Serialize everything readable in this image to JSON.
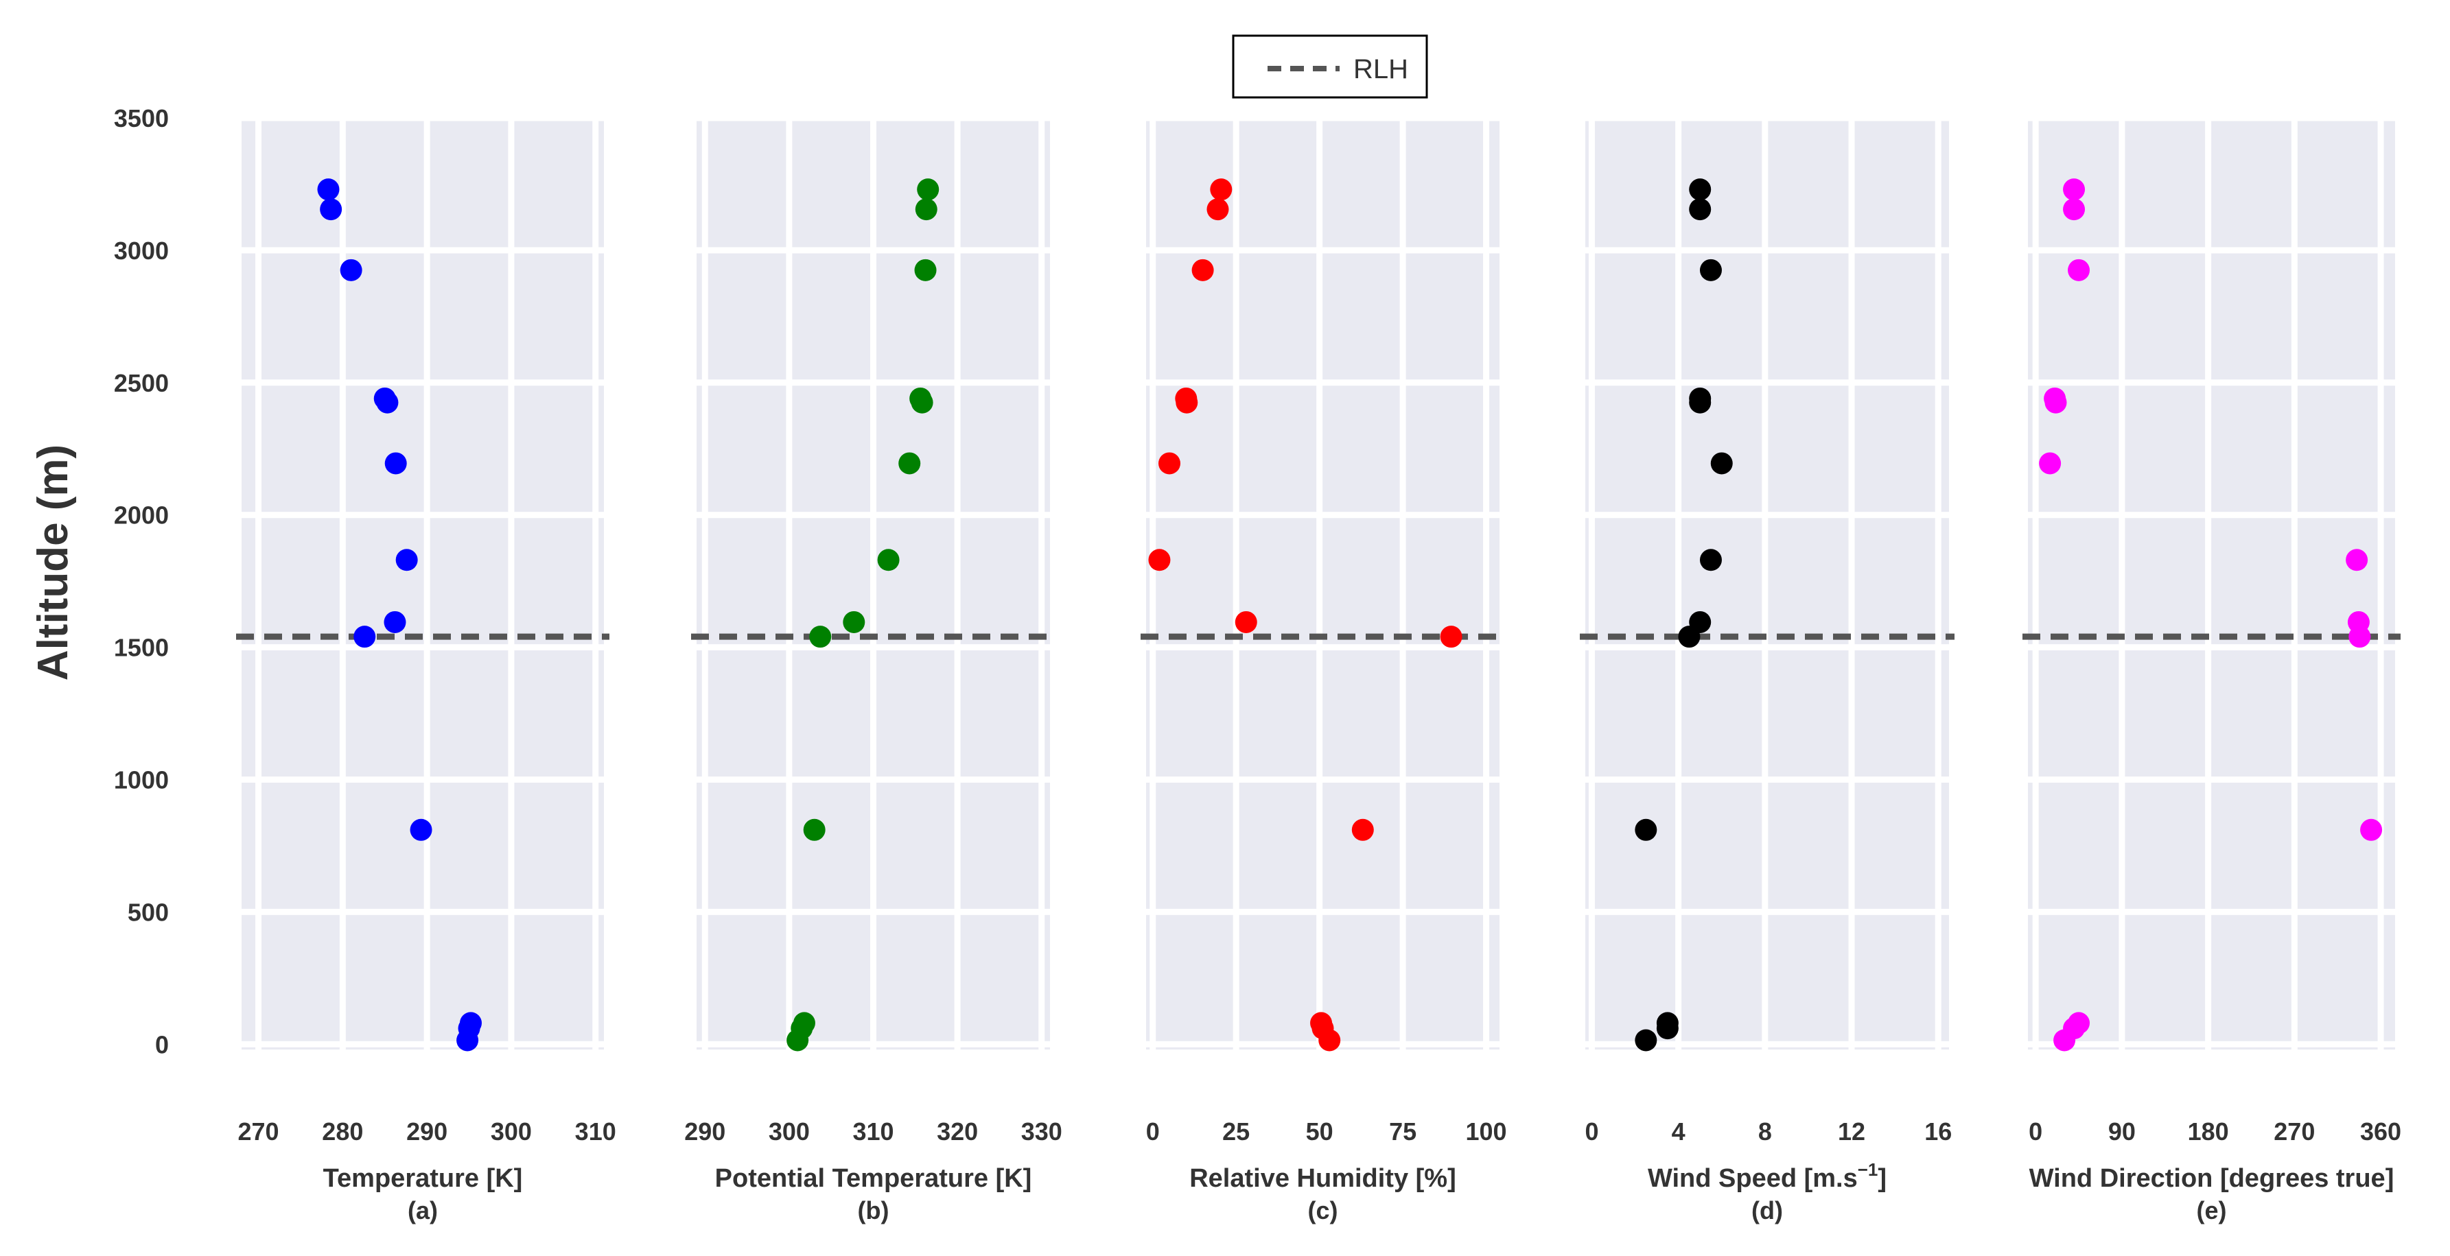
{
  "legend": {
    "label": "RLH"
  },
  "y_axis": {
    "label": "Altitude (m)",
    "ticks": [
      "0",
      "500",
      "1000",
      "1500",
      "2000",
      "2500",
      "3000",
      "3500"
    ]
  },
  "colors": {
    "background": "#ffffff",
    "panel": "#e9eaf2",
    "grid": "#ffffff",
    "rlh_line": "#555555",
    "temperature": "#0000ff",
    "potential_temperature": "#008000",
    "relative_humidity": "#ff0000",
    "wind_speed": "#000000",
    "wind_direction": "#ff00ff"
  },
  "chart_data": [
    {
      "type": "scatter",
      "panel": "(a)",
      "xlabel": "Temperature [K]",
      "ylabel": "Altitude (m)",
      "xlim": [
        268,
        311
      ],
      "ylim": [
        -20,
        3500
      ],
      "xticks": [
        270,
        280,
        290,
        300,
        310
      ],
      "xtick_labels": [
        "270",
        "280",
        "290",
        "300",
        "310"
      ],
      "rlh": 1540,
      "color": "#0000ff",
      "points": [
        {
          "x": 278.3,
          "y": 3230
        },
        {
          "x": 278.6,
          "y": 3155
        },
        {
          "x": 281.0,
          "y": 2925
        },
        {
          "x": 285.0,
          "y": 2440
        },
        {
          "x": 285.3,
          "y": 2425
        },
        {
          "x": 286.3,
          "y": 2195
        },
        {
          "x": 287.6,
          "y": 1830
        },
        {
          "x": 286.2,
          "y": 1595
        },
        {
          "x": 282.6,
          "y": 1540
        },
        {
          "x": 289.3,
          "y": 810
        },
        {
          "x": 295.2,
          "y": 80
        },
        {
          "x": 295.0,
          "y": 60
        },
        {
          "x": 294.8,
          "y": 15
        }
      ]
    },
    {
      "type": "scatter",
      "panel": "(b)",
      "xlabel": "Potential Temperature [K]",
      "ylabel": "Altitude (m)",
      "xlim": [
        289,
        331
      ],
      "ylim": [
        -20,
        3500
      ],
      "xticks": [
        290,
        300,
        310,
        320,
        330
      ],
      "xtick_labels": [
        "290",
        "300",
        "310",
        "320",
        "330"
      ],
      "rlh": 1540,
      "color": "#008000",
      "points": [
        {
          "x": 316.5,
          "y": 3230
        },
        {
          "x": 316.3,
          "y": 3155
        },
        {
          "x": 316.2,
          "y": 2925
        },
        {
          "x": 315.6,
          "y": 2440
        },
        {
          "x": 315.8,
          "y": 2425
        },
        {
          "x": 314.3,
          "y": 2195
        },
        {
          "x": 311.8,
          "y": 1830
        },
        {
          "x": 307.7,
          "y": 1595
        },
        {
          "x": 303.7,
          "y": 1540
        },
        {
          "x": 303.0,
          "y": 810
        },
        {
          "x": 301.8,
          "y": 80
        },
        {
          "x": 301.5,
          "y": 60
        },
        {
          "x": 301.0,
          "y": 15
        }
      ]
    },
    {
      "type": "scatter",
      "panel": "(c)",
      "xlabel": "Relative Humidity [%]",
      "ylabel": "Altitude (m)",
      "xlim": [
        -2,
        104
      ],
      "ylim": [
        -20,
        3500
      ],
      "xticks": [
        0,
        25,
        50,
        75,
        100
      ],
      "xtick_labels": [
        "0",
        "25",
        "50",
        "75",
        "100"
      ],
      "rlh": 1540,
      "color": "#ff0000",
      "points": [
        {
          "x": 20.5,
          "y": 3230
        },
        {
          "x": 19.5,
          "y": 3155
        },
        {
          "x": 15.0,
          "y": 2925
        },
        {
          "x": 10.0,
          "y": 2440
        },
        {
          "x": 10.2,
          "y": 2425
        },
        {
          "x": 5.0,
          "y": 2195
        },
        {
          "x": 2.0,
          "y": 1830
        },
        {
          "x": 28.0,
          "y": 1595
        },
        {
          "x": 89.5,
          "y": 1540
        },
        {
          "x": 63.0,
          "y": 810
        },
        {
          "x": 50.5,
          "y": 80
        },
        {
          "x": 51.0,
          "y": 60
        },
        {
          "x": 53.0,
          "y": 15
        }
      ]
    },
    {
      "type": "scatter",
      "panel": "(d)",
      "xlabel": "Wind Speed [m.s",
      "xlabel_sup": "−1",
      "xlabel_end": "]",
      "ylabel": "Altitude (m)",
      "xlim": [
        -0.3,
        16.5
      ],
      "ylim": [
        -20,
        3500
      ],
      "xticks": [
        0,
        4,
        8,
        12,
        16
      ],
      "xtick_labels": [
        "0",
        "4",
        "8",
        "12",
        "16"
      ],
      "rlh": 1540,
      "color": "#000000",
      "points": [
        {
          "x": 5.0,
          "y": 3230
        },
        {
          "x": 5.0,
          "y": 3155
        },
        {
          "x": 5.5,
          "y": 2925
        },
        {
          "x": 5.0,
          "y": 2440
        },
        {
          "x": 5.0,
          "y": 2425
        },
        {
          "x": 6.0,
          "y": 2195
        },
        {
          "x": 5.5,
          "y": 1830
        },
        {
          "x": 5.0,
          "y": 1595
        },
        {
          "x": 4.5,
          "y": 1540
        },
        {
          "x": 2.5,
          "y": 810
        },
        {
          "x": 3.5,
          "y": 80
        },
        {
          "x": 3.5,
          "y": 60
        },
        {
          "x": 2.5,
          "y": 15
        }
      ]
    },
    {
      "type": "scatter",
      "panel": "(e)",
      "xlabel": "Wind Direction [degrees true]",
      "ylabel": "Altitude (m)",
      "xlim": [
        -8,
        375
      ],
      "ylim": [
        -20,
        3500
      ],
      "xticks": [
        0,
        90,
        180,
        270,
        360
      ],
      "xtick_labels": [
        "0",
        "90",
        "180",
        "270",
        "360"
      ],
      "rlh": 1540,
      "color": "#ff00ff",
      "points": [
        {
          "x": 40,
          "y": 3230
        },
        {
          "x": 40,
          "y": 3155
        },
        {
          "x": 45,
          "y": 2925
        },
        {
          "x": 20,
          "y": 2440
        },
        {
          "x": 21,
          "y": 2425
        },
        {
          "x": 15,
          "y": 2195
        },
        {
          "x": 335,
          "y": 1830
        },
        {
          "x": 337,
          "y": 1595
        },
        {
          "x": 338,
          "y": 1540
        },
        {
          "x": 350,
          "y": 810
        },
        {
          "x": 45,
          "y": 80
        },
        {
          "x": 40,
          "y": 60
        },
        {
          "x": 30,
          "y": 15
        }
      ]
    }
  ]
}
